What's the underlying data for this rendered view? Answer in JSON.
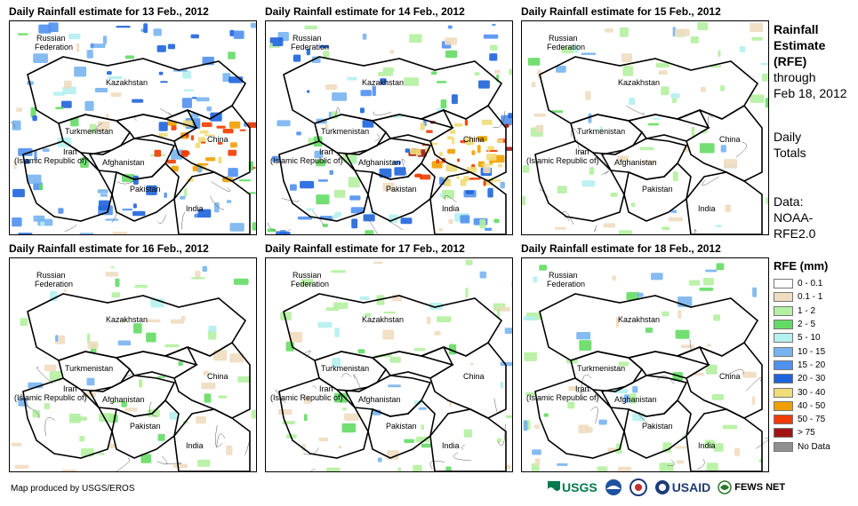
{
  "panels": [
    {
      "title": "Daily Rainfall estimate for 13 Feb., 2012",
      "intensity": "high"
    },
    {
      "title": "Daily Rainfall estimate for 14 Feb., 2012",
      "intensity": "veryhigh"
    },
    {
      "title": "Daily Rainfall estimate for 15 Feb., 2012",
      "intensity": "low"
    },
    {
      "title": "Daily Rainfall estimate for 16 Feb., 2012",
      "intensity": "low"
    },
    {
      "title": "Daily Rainfall estimate for 17 Feb., 2012",
      "intensity": "low"
    },
    {
      "title": "Daily Rainfall estimate for 18 Feb., 2012",
      "intensity": "low"
    }
  ],
  "map_labels": {
    "russia_1": "Russian",
    "russia_2": "Federation",
    "kazakhstan": "Kazakhstan",
    "turkmenistan": "Turkmenistan",
    "iran_1": "Iran",
    "iran_2": "(Islamic Republic of)",
    "afghanistan": "Afghanistan",
    "pakistan": "Pakistan",
    "china": "China",
    "india": "India"
  },
  "sidebar": {
    "line1": "Rainfall",
    "line2": "Estimate",
    "line3": "(RFE)",
    "line4": "through",
    "line5": "Feb 18, 2012",
    "line6": "Daily",
    "line7": "Totals",
    "line8": "Data:",
    "line9": "NOAA-",
    "line10": "RFE2.0"
  },
  "legend": {
    "title": "RFE (mm)",
    "items": [
      {
        "label": "0 - 0.1",
        "color": "#ffffff"
      },
      {
        "label": "0.1 - 1",
        "color": "#f0dcc0"
      },
      {
        "label": "1 - 2",
        "color": "#b4f0a0"
      },
      {
        "label": "2 - 5",
        "color": "#64dc64"
      },
      {
        "label": "5 - 10",
        "color": "#b4f0f0"
      },
      {
        "label": "10 - 15",
        "color": "#78b4f0"
      },
      {
        "label": "15 - 20",
        "color": "#5090f0"
      },
      {
        "label": "20 - 30",
        "color": "#1e64dc"
      },
      {
        "label": "30 - 40",
        "color": "#f0dc78"
      },
      {
        "label": "40 - 50",
        "color": "#f0a000"
      },
      {
        "label": "50 - 75",
        "color": "#f03c00"
      },
      {
        "label": "> 75",
        "color": "#a01414"
      },
      {
        "label": "No Data",
        "color": "#909090"
      }
    ]
  },
  "credit": "Map produced by USGS/EROS",
  "logos": {
    "usgs": "USGS",
    "usaid": "USAID",
    "fewsnet": "FEWS NET"
  }
}
